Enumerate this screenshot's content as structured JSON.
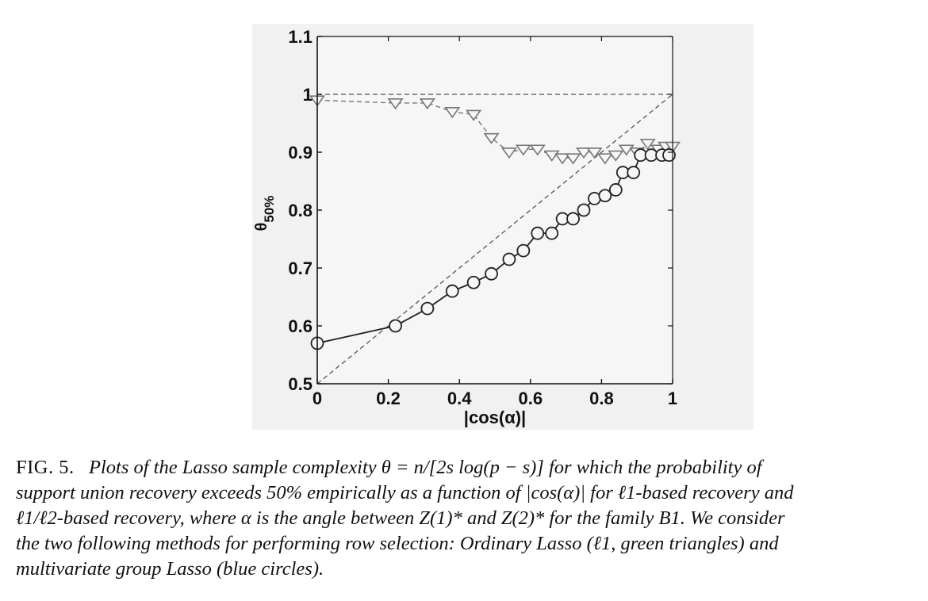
{
  "chart_data": {
    "type": "line",
    "xlabel": "|cos(α)|",
    "ylabel": "θ̃ 50%",
    "ylabel_main": "θ",
    "ylabel_sub": "50%",
    "xlim": [
      0,
      1
    ],
    "ylim": [
      0.5,
      1.1
    ],
    "xticks": [
      0,
      0.2,
      0.4,
      0.6,
      0.8,
      1
    ],
    "xtick_labels": [
      "0",
      "0.2",
      "0.4",
      "0.6",
      "0.8",
      "1"
    ],
    "yticks": [
      0.5,
      0.6,
      0.7,
      0.8,
      0.9,
      1,
      1.1
    ],
    "ytick_labels": [
      "0.5",
      "0.6",
      "0.7",
      "0.8",
      "0.9",
      "1",
      "1.1"
    ],
    "grid": false,
    "series": [
      {
        "marker": "triangle-down",
        "linestyle": "dashed",
        "color": "#777777",
        "x": [
          0,
          0.22,
          0.31,
          0.38,
          0.44,
          0.49,
          0.54,
          0.58,
          0.62,
          0.66,
          0.69,
          0.72,
          0.75,
          0.78,
          0.81,
          0.84,
          0.87,
          0.9,
          0.93,
          0.96,
          0.98,
          1.0
        ],
        "y": [
          0.99,
          0.985,
          0.985,
          0.97,
          0.965,
          0.925,
          0.9,
          0.905,
          0.905,
          0.895,
          0.89,
          0.89,
          0.9,
          0.9,
          0.89,
          0.895,
          0.905,
          0.9,
          0.915,
          0.905,
          0.91,
          0.91
        ]
      },
      {
        "marker": "circle",
        "linestyle": "solid",
        "color": "#222222",
        "x": [
          0,
          0.22,
          0.31,
          0.38,
          0.44,
          0.49,
          0.54,
          0.58,
          0.62,
          0.66,
          0.69,
          0.72,
          0.75,
          0.78,
          0.81,
          0.84,
          0.86,
          0.89,
          0.91,
          0.94,
          0.97,
          0.99
        ],
        "y": [
          0.57,
          0.6,
          0.63,
          0.66,
          0.675,
          0.69,
          0.715,
          0.73,
          0.76,
          0.76,
          0.785,
          0.785,
          0.8,
          0.82,
          0.825,
          0.835,
          0.865,
          0.865,
          0.895,
          0.895,
          0.895,
          0.895
        ]
      }
    ],
    "reference_lines": [
      {
        "kind": "diagonal",
        "from": [
          0,
          0.5
        ],
        "to": [
          1,
          1.0
        ],
        "linestyle": "dashed"
      },
      {
        "kind": "horizontal",
        "y": 1.0,
        "linestyle": "dashed"
      }
    ]
  },
  "caption": {
    "label": "FIG. 5.",
    "line1": "Plots of the Lasso sample complexity θ = n/[2s log(p − s)] for which the probability of",
    "line2": "support union recovery exceeds 50% empirically as a function of |cos(α)| for ℓ1-based recovery and",
    "line3": "ℓ1/ℓ2-based recovery, where α is the angle between Z(1)* and Z(2)* for the family B1. We consider",
    "line4": "the two following methods for performing row selection: Ordinary Lasso (ℓ1, green triangles) and",
    "line5": "multivariate group Lasso (blue circles)."
  }
}
